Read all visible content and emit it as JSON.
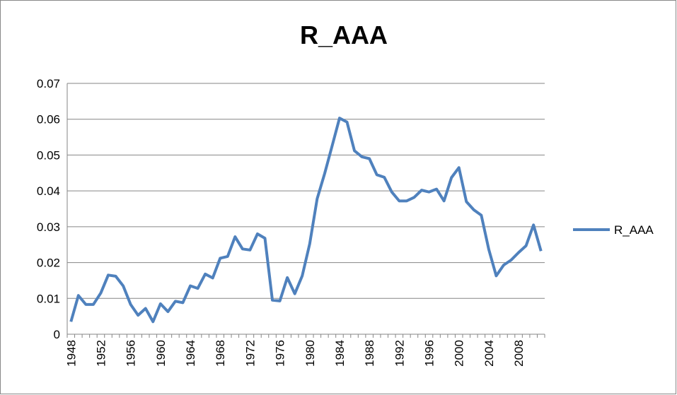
{
  "chart_data": {
    "type": "line",
    "title": "R_AAA",
    "categories": [
      "1948",
      null,
      null,
      null,
      "1952",
      null,
      null,
      null,
      "1956",
      null,
      null,
      null,
      "1960",
      null,
      null,
      null,
      "1964",
      null,
      null,
      null,
      "1968",
      null,
      null,
      null,
      "1972",
      null,
      null,
      null,
      "1976",
      null,
      null,
      null,
      "1980",
      null,
      null,
      null,
      "1984",
      null,
      null,
      null,
      "1988",
      null,
      null,
      null,
      "1992",
      null,
      null,
      null,
      "1996",
      null,
      null,
      null,
      "2000",
      null,
      null,
      null,
      "2004",
      null,
      null,
      null,
      "2008",
      null,
      null,
      null
    ],
    "series": [
      {
        "name": "R_AAA",
        "color": "#4f81bd",
        "values": [
          0.0035,
          0.0108,
          0.0083,
          0.0083,
          0.0115,
          0.0165,
          0.0162,
          0.0135,
          0.0083,
          0.0053,
          0.0072,
          0.0035,
          0.0085,
          0.0063,
          0.0092,
          0.0088,
          0.0135,
          0.0128,
          0.0168,
          0.0157,
          0.0212,
          0.0217,
          0.0272,
          0.0238,
          0.0235,
          0.028,
          0.0268,
          0.0095,
          0.0093,
          0.0158,
          0.0113,
          0.0163,
          0.0252,
          0.0378,
          0.0448,
          0.0525,
          0.0603,
          0.0592,
          0.0512,
          0.0495,
          0.049,
          0.0445,
          0.0438,
          0.0397,
          0.0372,
          0.0372,
          0.0382,
          0.0402,
          0.0397,
          0.0405,
          0.0372,
          0.0437,
          0.0465,
          0.037,
          0.0347,
          0.0332,
          0.0237,
          0.0163,
          0.0193,
          0.0207,
          0.0228,
          0.0247,
          0.0305,
          0.0232
        ]
      }
    ],
    "ylim": [
      0,
      0.07
    ],
    "yticks": [
      0,
      0.01,
      0.02,
      0.03,
      0.04,
      0.05,
      0.06,
      0.07
    ],
    "grid": true,
    "legend": "right"
  }
}
